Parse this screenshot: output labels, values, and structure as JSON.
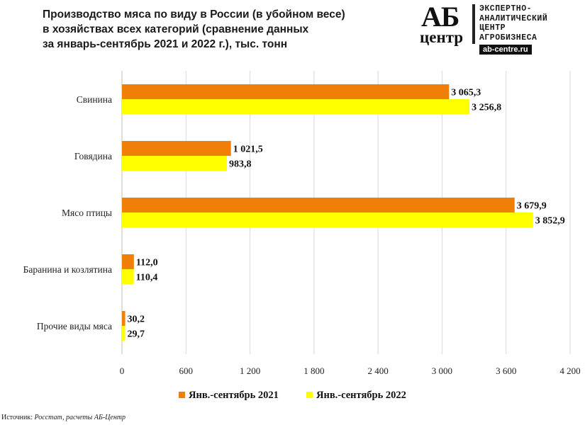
{
  "title_lines": [
    "Производство  мяса по виду в России (в убойном весе)",
    "в хозяйствах всех категорий (сравнение данных",
    "за январь-сентябрь  2021 и 2022 г.), тыс. тонн"
  ],
  "logo": {
    "mark_top": "АБ",
    "mark_bottom": "центр",
    "lines": [
      "ЭКСПЕРТНО-",
      "АНАЛИТИЧЕСКИЙ",
      "ЦЕНТР",
      "АГРОБИЗНЕСА"
    ],
    "site": "ab-centre.ru"
  },
  "source": {
    "label": "Источник:",
    "text": "Росстат, расчеты АБ-Центр"
  },
  "chart_data": {
    "type": "bar",
    "orientation": "horizontal",
    "title": "Производство  мяса по виду в России (в убойном весе) в хозяйствах всех категорий (сравнение данных за январь-сентябрь  2021 и 2022 г.), тыс. тонн",
    "categories": [
      "Свинина",
      "Говядина",
      "Мясо птицы",
      "Баранина и козлятина",
      "Прочие виды мяса"
    ],
    "series": [
      {
        "name": "Янв.-сентябрь 2021",
        "color": "#f07f09",
        "values": [
          3065.3,
          1021.5,
          3679.9,
          112.0,
          30.2
        ],
        "labels": [
          "3 065,3",
          "1 021,5",
          "3 679,9",
          "112,0",
          "30,2"
        ]
      },
      {
        "name": "Янв.-сентябрь 2022",
        "color": "#ffff00",
        "values": [
          3256.8,
          983.8,
          3852.9,
          110.4,
          29.7
        ],
        "labels": [
          "3 256,8",
          "983,8",
          "3 852,9",
          "110,4",
          "29,7"
        ]
      }
    ],
    "xlim": [
      0,
      4200
    ],
    "xticks": [
      0,
      600,
      1200,
      1800,
      2400,
      3000,
      3600,
      4200
    ],
    "xtick_labels": [
      "0",
      "600",
      "1 200",
      "1 800",
      "2 400",
      "3 000",
      "3 600",
      "4 200"
    ],
    "grid": "vertical",
    "legend": "bottom"
  }
}
